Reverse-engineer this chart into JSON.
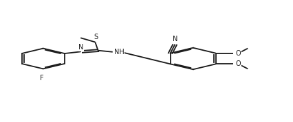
{
  "bg_color": "#ffffff",
  "line_color": "#1a1a1a",
  "line_width": 1.3,
  "font_size": 7.0,
  "figsize": [
    4.26,
    1.78
  ],
  "dpi": 100,
  "xlim": [
    0,
    100
  ],
  "ylim": [
    0,
    100
  ]
}
